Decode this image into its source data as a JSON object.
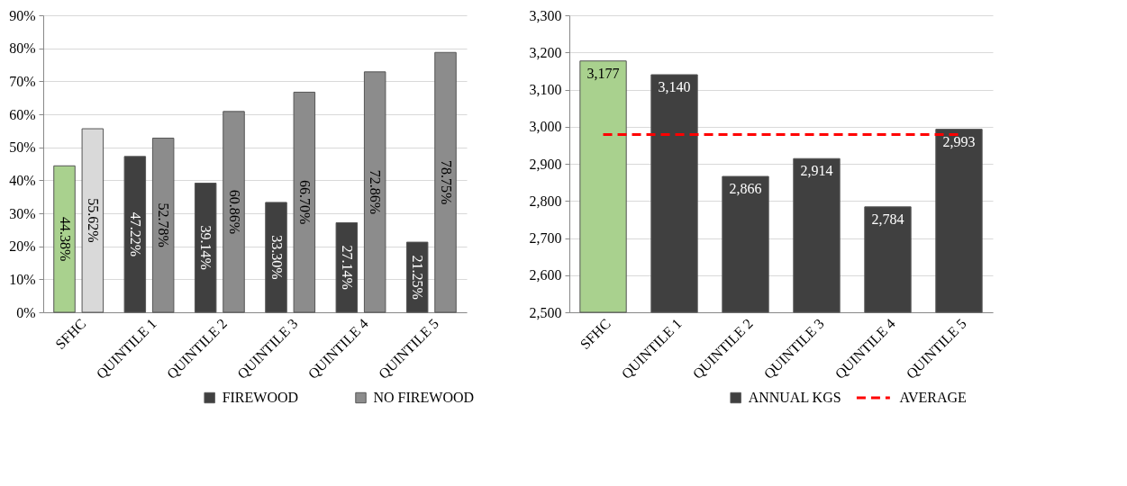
{
  "chart_data": [
    {
      "type": "bar",
      "categories": [
        "SFHC",
        "QUINTILE 1",
        "QUINTILE 2",
        "QUINTILE 3",
        "QUINTILE 4",
        "QUINTILE 5"
      ],
      "series": [
        {
          "name": "FIREWOOD",
          "color": "#404040",
          "colors": [
            "#a9d18e",
            "#404040",
            "#404040",
            "#404040",
            "#404040",
            "#404040"
          ],
          "values": [
            44.38,
            47.22,
            39.14,
            33.3,
            27.14,
            21.25
          ],
          "value_labels": [
            "44.38%",
            "47.22%",
            "39.14%",
            "33.30%",
            "27.14%",
            "21.25%"
          ]
        },
        {
          "name": "NO FIREWOOD",
          "color": "#8c8c8c",
          "colors": [
            "#d9d9d9",
            "#8c8c8c",
            "#8c8c8c",
            "#8c8c8c",
            "#8c8c8c",
            "#8c8c8c"
          ],
          "values": [
            55.62,
            52.78,
            60.86,
            66.7,
            72.86,
            78.75
          ],
          "value_labels": [
            "55.62%",
            "52.78%",
            "60.86%",
            "66.70%",
            "72.86%",
            "78.75%"
          ]
        }
      ],
      "ylim": [
        0,
        90
      ],
      "yticks": [
        {
          "value": 0,
          "label": "0%"
        },
        {
          "value": 10,
          "label": "10%"
        },
        {
          "value": 20,
          "label": "20%"
        },
        {
          "value": 30,
          "label": "30%"
        },
        {
          "value": 40,
          "label": "40%"
        },
        {
          "value": 50,
          "label": "50%"
        },
        {
          "value": 60,
          "label": "60%"
        },
        {
          "value": 70,
          "label": "70%"
        },
        {
          "value": 80,
          "label": "80%"
        },
        {
          "value": 90,
          "label": "90%"
        }
      ],
      "grid": "y",
      "legend": "bottom"
    },
    {
      "type": "bar",
      "categories": [
        "SFHC",
        "QUINTILE 1",
        "QUINTILE 2",
        "QUINTILE 3",
        "QUINTILE 4",
        "QUINTILE 5"
      ],
      "series": [
        {
          "name": "ANNUAL KGS",
          "color": "#404040",
          "colors": [
            "#a9d18e",
            "#404040",
            "#404040",
            "#404040",
            "#404040",
            "#404040"
          ],
          "values": [
            3177,
            3140,
            2866,
            2914,
            2784,
            2993
          ],
          "value_labels": [
            "3,177",
            "3,140",
            "2,866",
            "2,914",
            "2,784",
            "2,993"
          ]
        }
      ],
      "ref_lines": [
        {
          "axis": "y",
          "value": 2979,
          "label": "AVERAGE",
          "color": "#ff0000",
          "line_style": "dashed"
        }
      ],
      "ylim": [
        2500,
        3300
      ],
      "yticks": [
        {
          "value": 2500,
          "label": "2,500"
        },
        {
          "value": 2600,
          "label": "2,600"
        },
        {
          "value": 2700,
          "label": "2,700"
        },
        {
          "value": 2800,
          "label": "2,800"
        },
        {
          "value": 2900,
          "label": "2,900"
        },
        {
          "value": 3000,
          "label": "3,000"
        },
        {
          "value": 3100,
          "label": "3,100"
        },
        {
          "value": 3200,
          "label": "3,200"
        },
        {
          "value": 3300,
          "label": "3,300"
        }
      ],
      "grid": "y",
      "legend": "bottom"
    }
  ]
}
